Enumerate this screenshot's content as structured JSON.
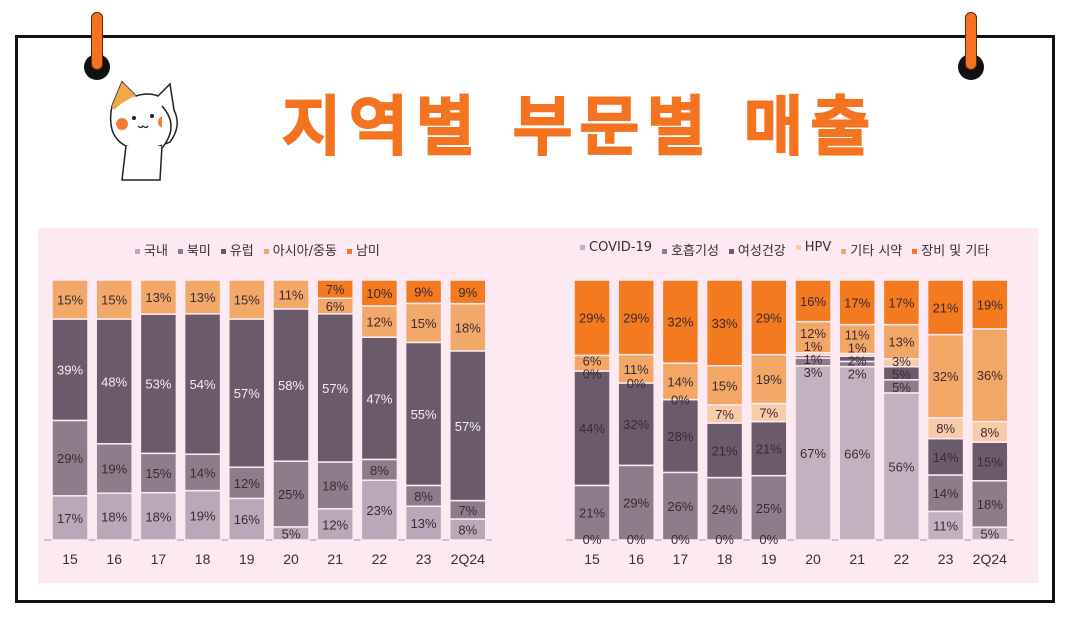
{
  "title": "지역별 부문별 매출",
  "chart_data": [
    {
      "type": "bar",
      "stacked": true,
      "categories": [
        "15",
        "16",
        "17",
        "18",
        "19",
        "20",
        "21",
        "22",
        "23",
        "2Q24"
      ],
      "series": [
        {
          "name": "국내",
          "color": "#baa7b7",
          "values": [
            17,
            18,
            18,
            19,
            16,
            5,
            12,
            23,
            13,
            8
          ]
        },
        {
          "name": "북미",
          "color": "#8e7c8b",
          "values": [
            29,
            19,
            15,
            14,
            12,
            25,
            18,
            8,
            8,
            7
          ]
        },
        {
          "name": "유럽",
          "color": "#6b5a6a",
          "values": [
            39,
            48,
            53,
            54,
            57,
            58,
            57,
            47,
            55,
            57
          ]
        },
        {
          "name": "아시아/중동",
          "color": "#f2a868",
          "values": [
            15,
            15,
            13,
            13,
            15,
            11,
            6,
            12,
            15,
            18
          ]
        },
        {
          "name": "남미",
          "color": "#f47a20",
          "values": [
            null,
            null,
            null,
            null,
            null,
            null,
            7,
            10,
            9,
            9
          ]
        }
      ],
      "value_suffix": "%",
      "legend": "top-left"
    },
    {
      "type": "bar",
      "stacked": true,
      "categories": [
        "15",
        "16",
        "17",
        "18",
        "19",
        "20",
        "21",
        "22",
        "23",
        "2Q24"
      ],
      "series": [
        {
          "name": "COVID-19",
          "color": "#c2b2c0",
          "values": [
            0,
            0,
            0,
            0,
            0,
            67,
            66,
            56,
            11,
            5
          ]
        },
        {
          "name": "호흡기성",
          "color": "#8e7c8b",
          "values": [
            21,
            29,
            26,
            24,
            25,
            3,
            2,
            5,
            14,
            18
          ]
        },
        {
          "name": "여성건강",
          "color": "#6b5a6a",
          "values": [
            44,
            32,
            28,
            21,
            21,
            1,
            2,
            5,
            14,
            15
          ]
        },
        {
          "name": "HPV",
          "color": "#f8cba9",
          "values": [
            0,
            0,
            0,
            7,
            7,
            1,
            1,
            3,
            8,
            8
          ]
        },
        {
          "name": "기타 시약",
          "color": "#f3a767",
          "values": [
            6,
            11,
            14,
            15,
            19,
            12,
            11,
            13,
            32,
            36
          ]
        },
        {
          "name": "장비 및 기타",
          "color": "#f47a20",
          "values": [
            29,
            29,
            32,
            33,
            29,
            16,
            17,
            17,
            21,
            19
          ]
        }
      ],
      "value_suffix": "%",
      "legend": "top-right"
    }
  ]
}
